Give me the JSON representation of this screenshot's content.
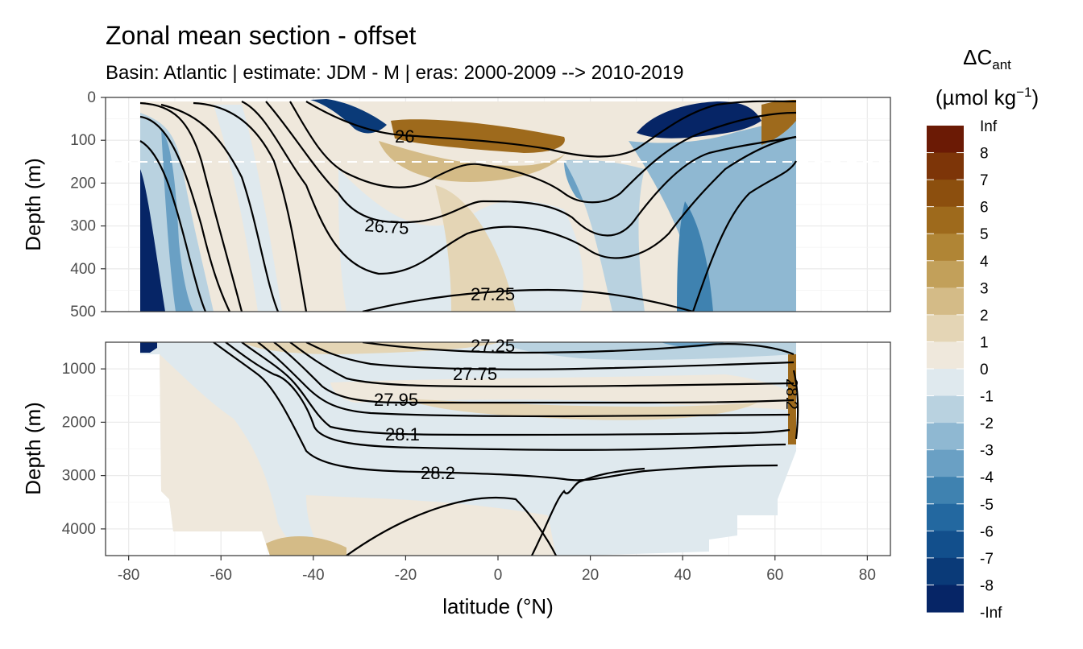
{
  "chart_data": {
    "type": "contour_section",
    "title": "Zonal mean section - offset",
    "subtitle": "Basin: Atlantic | estimate: JDM - M | eras: 2000-2009 --> 2010-2019",
    "xlabel": "latitude (°N)",
    "ylabel": "Depth (m)",
    "x_ticks": [
      "-80",
      "-60",
      "-40",
      "-20",
      "0",
      "20",
      "40",
      "60",
      "80"
    ],
    "x_range": [
      -85,
      85
    ],
    "panels": [
      {
        "name": "upper",
        "ylim": [
          0,
          500
        ],
        "y_ticks": [
          "0",
          "100",
          "200",
          "300",
          "400",
          "500"
        ],
        "reference_line_depth": 150
      },
      {
        "name": "lower",
        "ylim": [
          500,
          4500
        ],
        "y_ticks": [
          "1000",
          "2000",
          "3000",
          "4000"
        ]
      }
    ],
    "legend": {
      "title_main": "ΔC",
      "title_sub": "ant",
      "units_main": "(µmol kg",
      "units_sup": "−1",
      "units_close": ")",
      "placement": "right",
      "labels": [
        "Inf",
        "8",
        "7",
        "6",
        "5",
        "4",
        "3",
        "2",
        "1",
        "0",
        "-1",
        "-2",
        "-3",
        "-4",
        "-5",
        "-6",
        "-7",
        "-8",
        "-Inf"
      ],
      "colors": [
        "#6b1a05",
        "#7d3508",
        "#8c4f0e",
        "#9e6a1c",
        "#b08535",
        "#c2a05a",
        "#d4bb87",
        "#e4d5b5",
        "#efe8dc",
        "#dfe9ee",
        "#b9d2e0",
        "#8fb8d2",
        "#6aa0c4",
        "#3f82b0",
        "#2368a0",
        "#124f8c",
        "#0a3a78",
        "#062566"
      ]
    },
    "isopycnal_labels": [
      "26",
      "26.75",
      "27.25",
      "27.25",
      "27.75",
      "27.95",
      "28.1",
      "28.2",
      "28.2"
    ]
  }
}
